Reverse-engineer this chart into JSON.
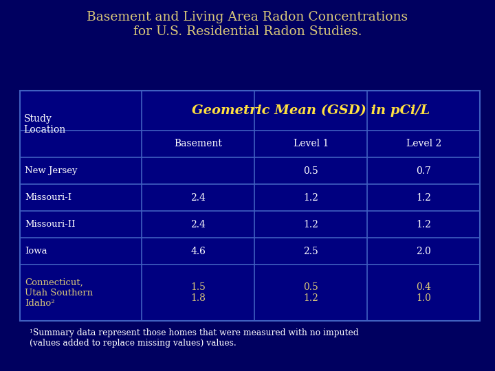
{
  "title_line1": "Basement and Living Area Radon Concentrations",
  "title_line2": "for U.S. Residential Radon Studies.",
  "title_color": "#DAC87A",
  "background_color": "#000060",
  "table_bg_color": "#000080",
  "table_line_color": "#4060C0",
  "header_main_text": "Geometric Mean (GSD) in pCi/L",
  "header_main_color": "#FFE040",
  "header_sub_color": "#FFFFFF",
  "cell_text_color": "#FFFFFF",
  "last_row_color": "#DAC87A",
  "col_headers": [
    "Basement",
    "Level 1",
    "Level 2"
  ],
  "row_labels": [
    "New Jersey",
    "Missouri-I",
    "Missouri-II",
    "Iowa",
    "Connecticut,\nUtah Southern\nIdaho²"
  ],
  "data": [
    [
      "",
      "0.5",
      "0.7"
    ],
    [
      "2.4",
      "1.2",
      "1.2"
    ],
    [
      "2.4",
      "1.2",
      "1.2"
    ],
    [
      "4.6",
      "2.5",
      "2.0"
    ],
    [
      "1.5\n1.8",
      "0.5\n1.2",
      "0.4\n1.0"
    ]
  ],
  "footnote": "¹Summary data represent those homes that were measured with no imputed\n(values added to replace missing values) values.",
  "footnote_color": "#FFFFFF"
}
